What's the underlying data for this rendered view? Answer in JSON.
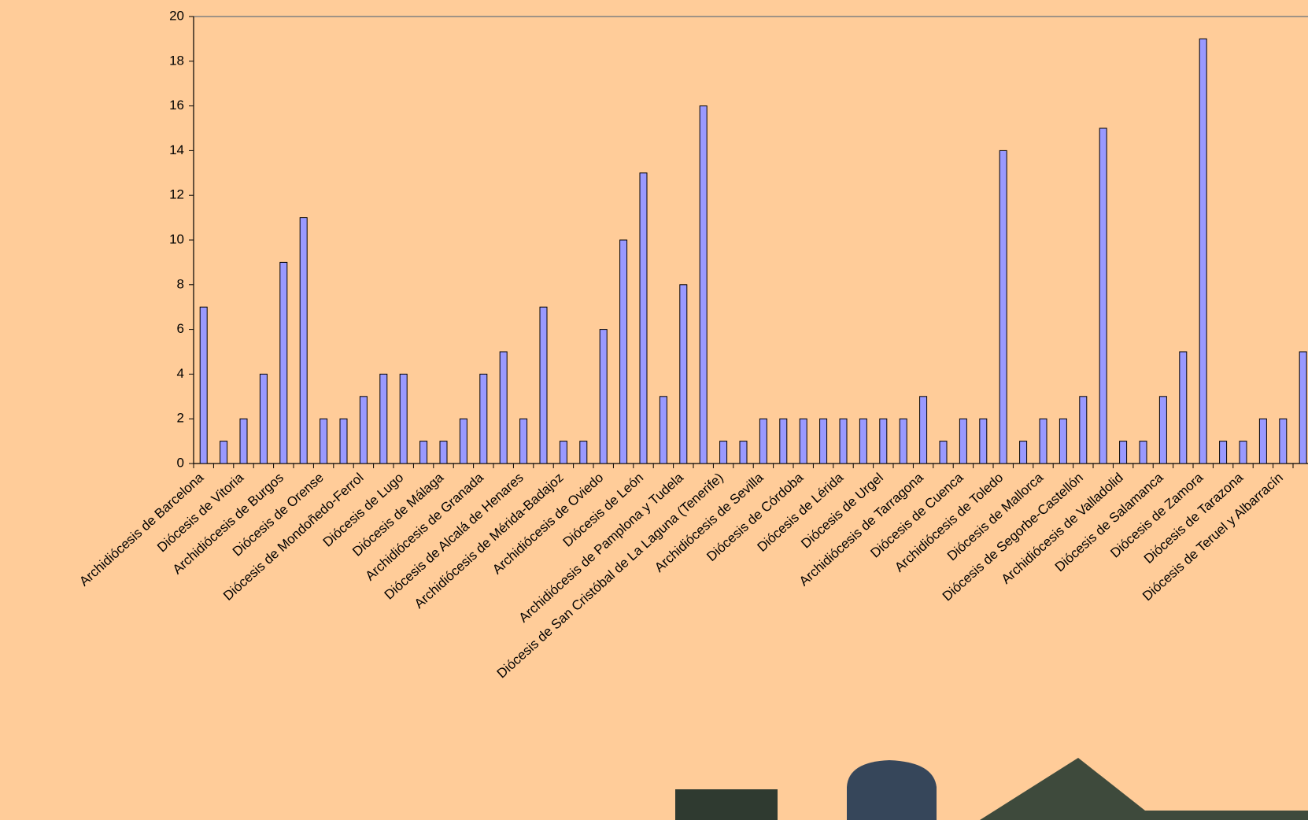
{
  "chart_data": {
    "type": "bar",
    "categories": [
      "Archidiócesis de Barcelona",
      null,
      "Diócesis de Vitoria",
      null,
      "Archidiócesis de Burgos",
      null,
      "Diócesis de Orense",
      null,
      "Diócesis de Mondoñedo-Ferrol",
      null,
      "Diócesis de Lugo",
      null,
      "Diócesis de Málaga",
      null,
      "Archidiócesis de Granada",
      null,
      "Diócesis de Alcalá de Henares",
      null,
      "Archidiócesis de Mérida-Badajoz",
      null,
      "Archidiócesis de Oviedo",
      null,
      "Diócesis de León",
      null,
      "Archidiócesis de Pamplona y Tudela",
      null,
      "Diócesis de San Cristóbal de La Laguna (Tenerife)",
      null,
      "Archidiócesis de Sevilla",
      null,
      "Diócesis de Córdoba",
      null,
      "Diócesis de Lérida",
      null,
      "Diócesis de Urgel",
      null,
      "Archidiócesis de Tarragona",
      null,
      "Diócesis de Cuenca",
      null,
      "Archidiócesis de Toledo",
      null,
      "Diócesis de Mallorca",
      null,
      "Diócesis de Segorbe-Castellón",
      null,
      "Archidiócesis de Valladolid",
      null,
      "Diócesis de Salamanca",
      null,
      "Diócesis de Zamora",
      null,
      "Diócesis de Tarazona",
      null,
      "Diócesis de Teruel y Albarracín",
      null
    ],
    "values": [
      7,
      1,
      2,
      4,
      9,
      11,
      2,
      2,
      3,
      4,
      4,
      1,
      1,
      2,
      4,
      5,
      2,
      7,
      1,
      1,
      6,
      10,
      13,
      3,
      8,
      16,
      1,
      1,
      2,
      2,
      2,
      2,
      2,
      2,
      2,
      2,
      3,
      1,
      2,
      2,
      14,
      1,
      2,
      2,
      3,
      15,
      1,
      1,
      3,
      5,
      19,
      1,
      1,
      2,
      2,
      5
    ],
    "color": "#9999ff",
    "ylim": [
      0,
      20
    ],
    "yticks": [
      0,
      2,
      4,
      6,
      8,
      10,
      12,
      14,
      16,
      18,
      20
    ]
  }
}
